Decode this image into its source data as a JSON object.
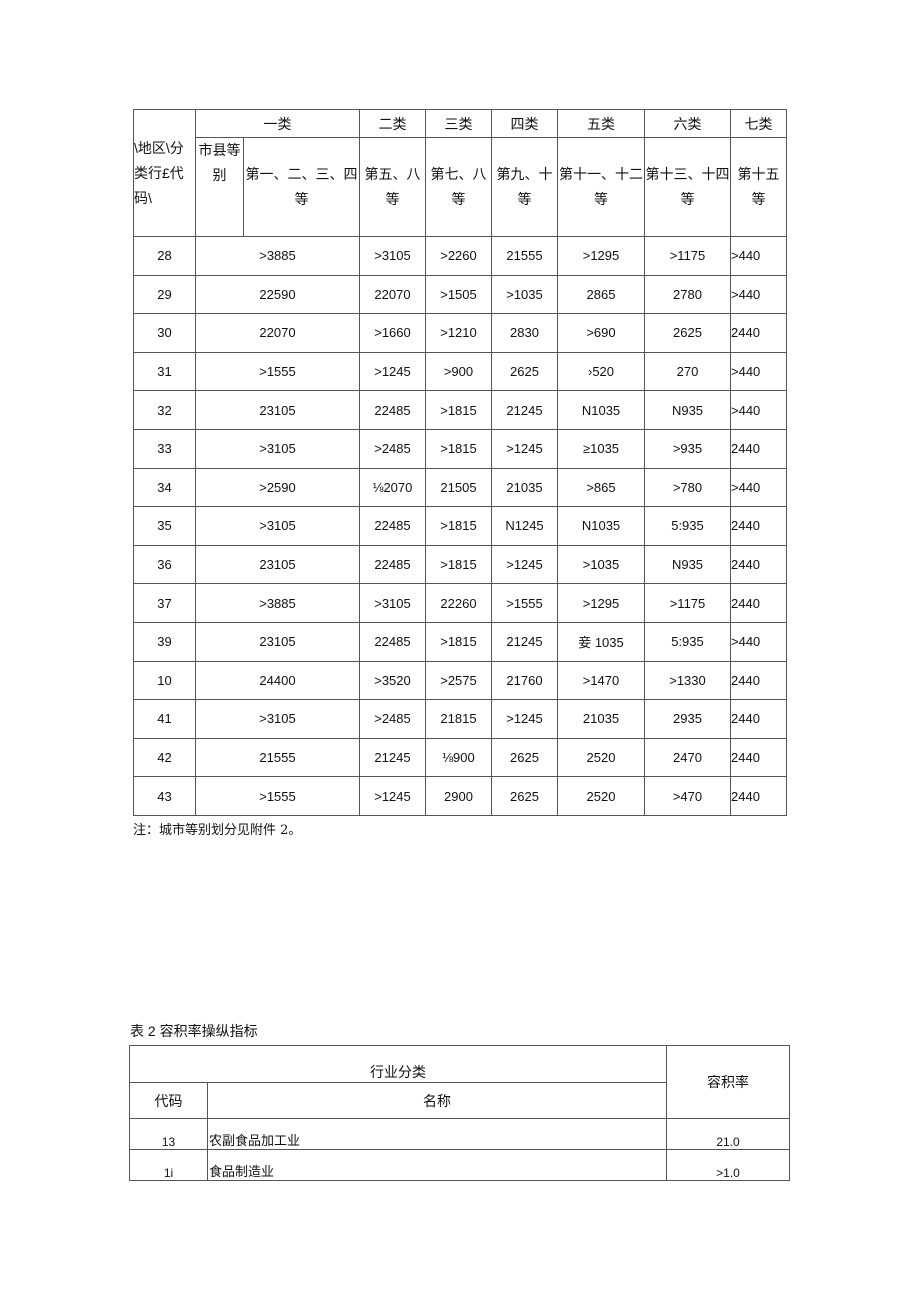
{
  "table1": {
    "corner_label": "\\地区\\分类行£代码\\",
    "class_headers": [
      "一类",
      "二类",
      "三类",
      "四类",
      "五类",
      "六类",
      "七类"
    ],
    "city_grade_label": "市县等别",
    "grade_headers": [
      "第一、二、三、四等",
      "第五、八等",
      "第七、八等",
      "第九、十等",
      "第十一、十二等",
      "第十三、十四等",
      "第十五等"
    ],
    "rows": [
      [
        "28",
        ">3885",
        ">3105",
        ">2260",
        "21555",
        ">1295",
        ">1175",
        ">440"
      ],
      [
        "29",
        "22590",
        "22070",
        ">1505",
        ">1035",
        "2865",
        "2780",
        ">440"
      ],
      [
        "30",
        "22070",
        ">1660",
        ">1210",
        "2830",
        ">690",
        "2625",
        "2440"
      ],
      [
        "31",
        ">1555",
        ">1245",
        ">900",
        "2625",
        "›520",
        "270",
        ">440"
      ],
      [
        "32",
        "23105",
        "22485",
        ">1815",
        "21245",
        "N1035",
        "N935",
        ">440"
      ],
      [
        "33",
        ">3105",
        ">2485",
        ">1815",
        ">1245",
        "≥1035",
        ">935",
        "2440"
      ],
      [
        "34",
        ">2590",
        "⅛2070",
        "21505",
        "21035",
        ">865",
        ">780",
        ">440"
      ],
      [
        "35",
        ">3105",
        "22485",
        ">1815",
        "N1245",
        "N1035",
        "5:935",
        "2440"
      ],
      [
        "36",
        "23105",
        "22485",
        ">1815",
        ">1245",
        ">1035",
        "N935",
        "2440"
      ],
      [
        "37",
        ">3885",
        ">3105",
        "22260",
        ">1555",
        ">1295",
        ">1175",
        "2440"
      ],
      [
        "39",
        "23105",
        "22485",
        ">1815",
        "21245",
        "妾 1035",
        "5:935",
        ">440"
      ],
      [
        "10",
        "24400",
        ">3520",
        ">2575",
        "21760",
        ">1470",
        ">1330",
        "2440"
      ],
      [
        "41",
        ">3105",
        ">2485",
        "21815",
        ">1245",
        "21035",
        "2935",
        "2440"
      ],
      [
        "42",
        "21555",
        "21245",
        "⅛900",
        "2625",
        "2520",
        "2470",
        "2440"
      ],
      [
        "43",
        ">1555",
        ">1245",
        "2900",
        "2625",
        "2520",
        ">470",
        "2440"
      ]
    ],
    "note": "注：城市等别划分见附件 2。"
  },
  "table2": {
    "caption": "表 2 容积率操纵指标",
    "group_header": "行业分类",
    "ratio_header": "容积率",
    "code_header": "代码",
    "name_header": "名称",
    "rows": [
      [
        "13",
        "农副食品加工业",
        "21.0"
      ],
      [
        "1i",
        "食品制造业",
        ">1.0"
      ]
    ]
  }
}
